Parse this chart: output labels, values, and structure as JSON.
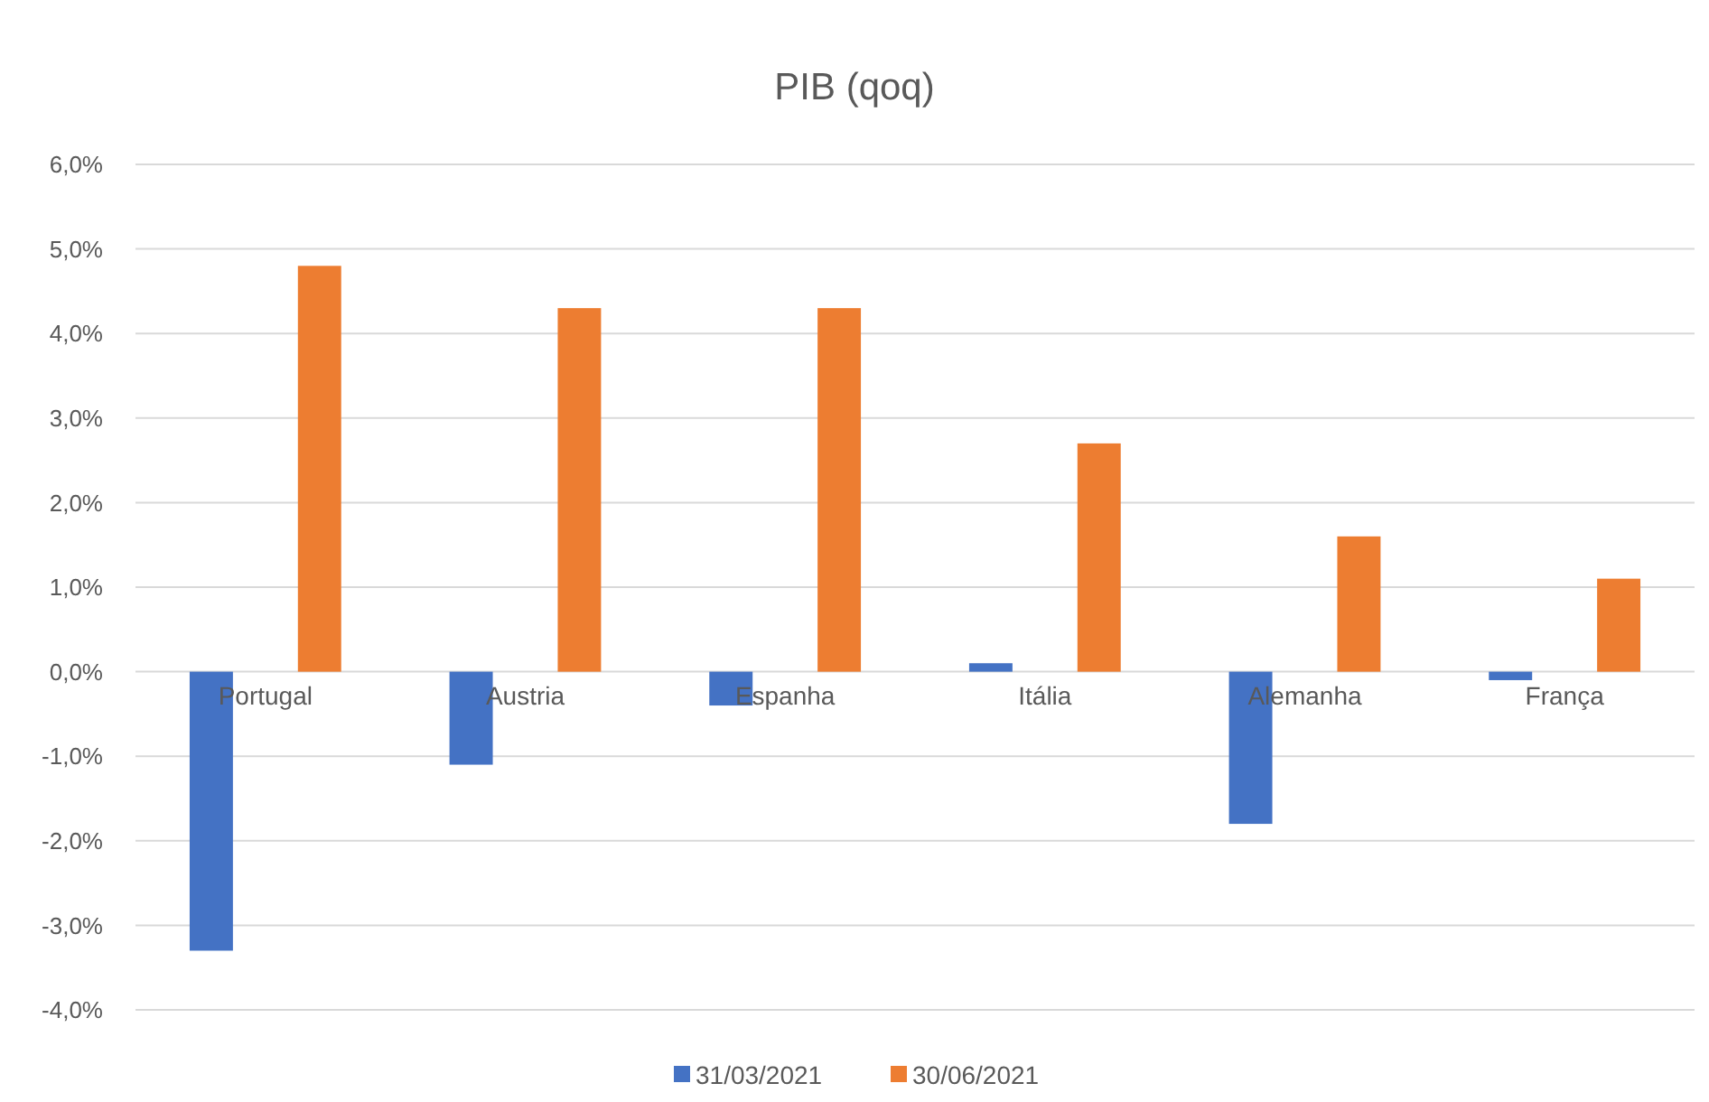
{
  "chart_data": {
    "type": "bar",
    "title": "PIB (qoq)",
    "categories": [
      "Portugal",
      "Austria",
      "Espanha",
      "Itália",
      "Alemanha",
      "França"
    ],
    "series": [
      {
        "name": "31/03/2021",
        "color": "#4472c4",
        "values": [
          -3.3,
          -1.1,
          -0.4,
          0.1,
          -1.8,
          -0.1
        ]
      },
      {
        "name": "30/06/2021",
        "color": "#ed7d31",
        "values": [
          4.8,
          4.3,
          4.3,
          2.7,
          1.6,
          1.1
        ]
      }
    ],
    "ylim": [
      -4,
      6
    ],
    "yticks": [
      {
        "value": -4,
        "label": "-4,0%"
      },
      {
        "value": -3,
        "label": "-3,0%"
      },
      {
        "value": -2,
        "label": "-2,0%"
      },
      {
        "value": -1,
        "label": "-1,0%"
      },
      {
        "value": 0,
        "label": "0,0%"
      },
      {
        "value": 1,
        "label": "1,0%"
      },
      {
        "value": 2,
        "label": "2,0%"
      },
      {
        "value": 3,
        "label": "3,0%"
      },
      {
        "value": 4,
        "label": "4,0%"
      },
      {
        "value": 5,
        "label": "5,0%"
      },
      {
        "value": 6,
        "label": "6,0%"
      }
    ],
    "grid": "y",
    "legend": "bottom"
  }
}
